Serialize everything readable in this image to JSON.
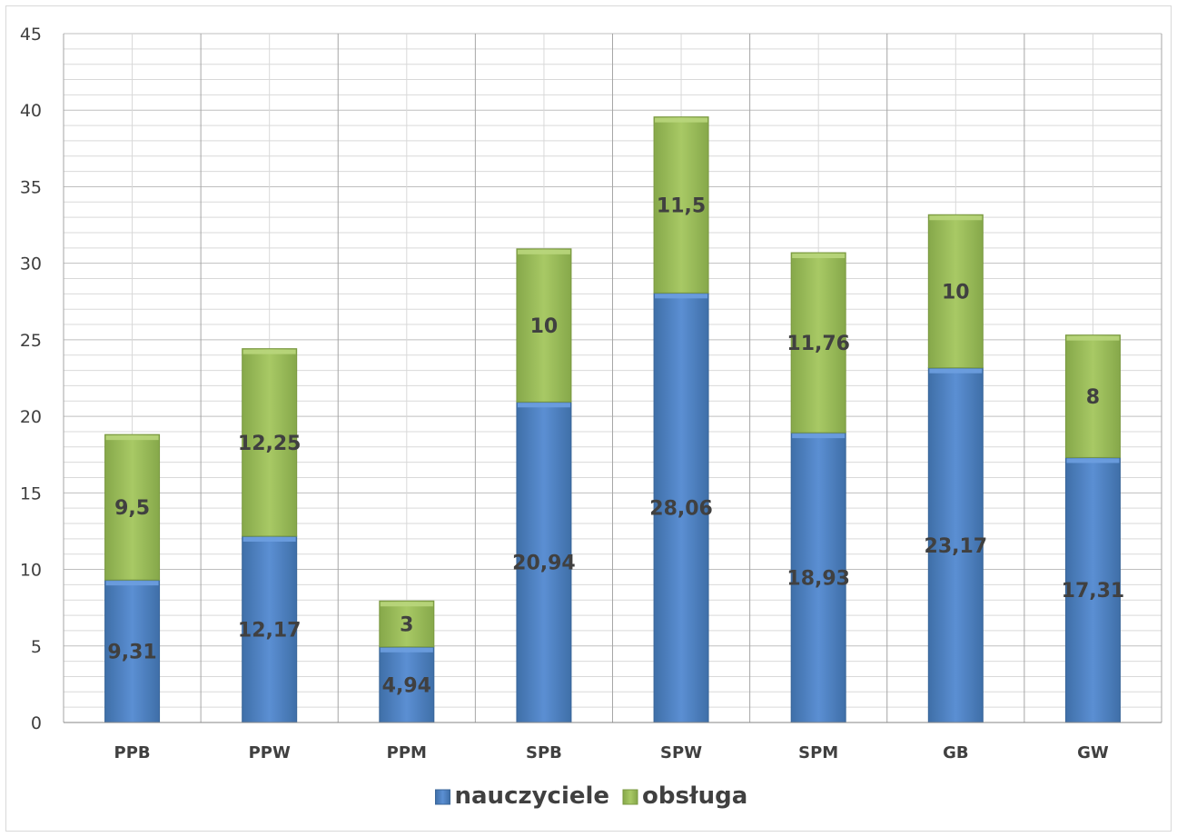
{
  "chart_data": {
    "type": "bar",
    "stacked": true,
    "categories": [
      "PPB",
      "PPW",
      "PPM",
      "SPB",
      "SPW",
      "SPM",
      "GB",
      "GW"
    ],
    "series": [
      {
        "name": "nauczyciele",
        "color": "#4f81bd",
        "values": [
          9.31,
          12.17,
          4.94,
          20.94,
          28.06,
          18.93,
          23.17,
          17.31
        ],
        "labels": [
          "9,31",
          "12,17",
          "4,94",
          "20,94",
          "28,06",
          "18,93",
          "23,17",
          "17,31"
        ]
      },
      {
        "name": "obsługa",
        "color": "#9bbb59",
        "values": [
          9.5,
          12.25,
          3,
          10,
          11.5,
          11.76,
          10,
          8
        ],
        "labels": [
          "9,5",
          "12,25",
          "3",
          "10",
          "11,5",
          "11,76",
          "10",
          "8"
        ]
      }
    ],
    "yticks": [
      "0",
      "5",
      "10",
      "15",
      "20",
      "25",
      "30",
      "35",
      "40",
      "45"
    ],
    "ylim": [
      0,
      45
    ],
    "minor_grid_step": 1,
    "grid": true,
    "legend_position": "bottom"
  }
}
